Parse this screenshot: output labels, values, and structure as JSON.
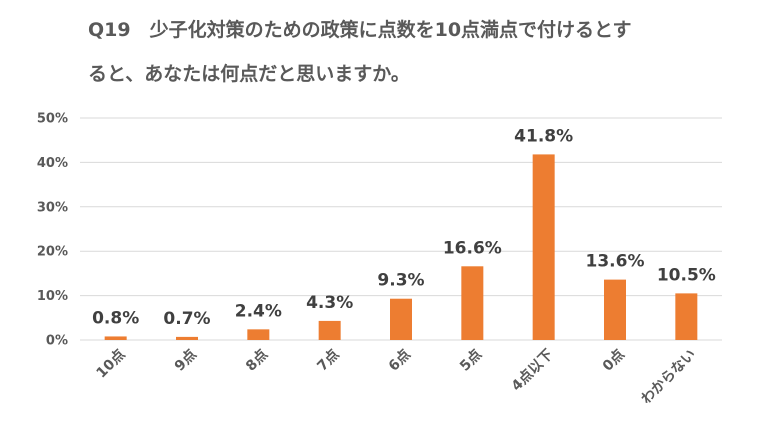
{
  "header": {
    "title_line1": "Q19　少子化対策のための政策に点数を10点満点で付けるとす",
    "title_line2": "ると、あなたは何点だと思いますか。"
  },
  "chart_data": {
    "type": "bar",
    "title": "Q19　少子化対策のための政策に点数を10点満点で付けるとすると、あなたは何点だと思いますか。",
    "categories": [
      "10点",
      "9点",
      "8点",
      "7点",
      "6点",
      "5点",
      "4点以下",
      "0点",
      "わからない"
    ],
    "values": [
      0.8,
      0.7,
      2.4,
      4.3,
      9.3,
      16.6,
      41.8,
      13.6,
      10.5
    ],
    "data_labels": [
      "0.8%",
      "0.7%",
      "2.4%",
      "4.3%",
      "9.3%",
      "16.6%",
      "41.8%",
      "13.6%",
      "10.5%"
    ],
    "yticks": [
      "0%",
      "10%",
      "20%",
      "30%",
      "40%",
      "50%"
    ],
    "ylim": [
      0,
      50
    ],
    "grid": true,
    "bar_color": "#ED7D31",
    "grid_color": "#D9D9D9"
  }
}
